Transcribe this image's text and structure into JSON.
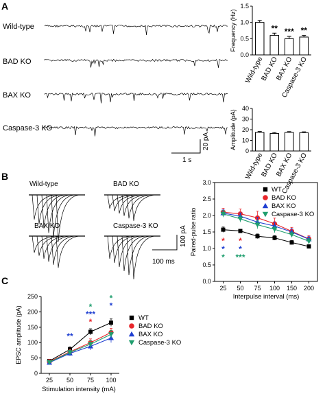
{
  "panel_letters": {
    "a": "A",
    "b": "B",
    "c": "C"
  },
  "panelA": {
    "trace_labels": [
      "Wild-type",
      "BAD KO",
      "BAX KO",
      "Caspase-3 KO"
    ],
    "scale_pa": "20 pA",
    "scale_time": "1 s"
  },
  "panelB": {
    "trace_labels": [
      "Wild-type",
      "BAD KO",
      "BAX KO",
      "Caspase-3 KO"
    ],
    "scale_pa": "100 pA",
    "scale_time": "100 ms"
  },
  "colors": {
    "wt": "#000000",
    "bad": "#e8262b",
    "bax": "#1f3fd1",
    "casp": "#1f9e6e",
    "bar": "#ffffff"
  },
  "chart_data": [
    {
      "id": "freq",
      "type": "bar",
      "categories": [
        "Wild-type",
        "BAD KO",
        "BAX KO",
        "Caspase-3 KO"
      ],
      "values": [
        1.0,
        0.6,
        0.5,
        0.55
      ],
      "errors": [
        0.06,
        0.07,
        0.07,
        0.05
      ],
      "significance": [
        "",
        "**",
        "***",
        "**"
      ],
      "ylabel": "Frequency (Hz)",
      "ylim": [
        0,
        1.5
      ],
      "yticks": [
        "0.0",
        "0.5",
        "1.0",
        "1.5"
      ]
    },
    {
      "id": "amp",
      "type": "bar",
      "categories": [
        "Wild-type",
        "BAD KO",
        "BAX KO",
        "Caspase-3 KO"
      ],
      "values": [
        17.5,
        16.5,
        17.5,
        17.2
      ],
      "errors": [
        0.8,
        0.8,
        0.7,
        0.8
      ],
      "ylabel": "Amplitude (pA)",
      "ylim": [
        0,
        40
      ],
      "yticks": [
        "0",
        "10",
        "20",
        "30",
        "40"
      ]
    },
    {
      "id": "ppr",
      "type": "line",
      "x": [
        25,
        50,
        75,
        100,
        150,
        200
      ],
      "series": [
        {
          "name": "WT",
          "key": "wt",
          "marker": "square",
          "values": [
            1.57,
            1.53,
            1.37,
            1.32,
            1.18,
            1.06
          ],
          "errors": [
            0.08,
            0.05,
            0.07,
            0.07,
            0.06,
            0.05
          ]
        },
        {
          "name": "BAD KO",
          "key": "bad",
          "marker": "circle",
          "values": [
            2.1,
            2.05,
            1.93,
            1.75,
            1.52,
            1.29
          ],
          "errors": [
            0.12,
            0.15,
            0.2,
            0.17,
            0.12,
            0.1
          ]
        },
        {
          "name": "BAX KO",
          "key": "bax",
          "marker": "triangle-up",
          "values": [
            2.07,
            1.98,
            1.8,
            1.68,
            1.5,
            1.28
          ],
          "errors": [
            0.1,
            0.1,
            0.15,
            0.12,
            0.1,
            0.08
          ]
        },
        {
          "name": "Caspase-3 KO",
          "key": "casp",
          "marker": "triangle-down",
          "values": [
            2.05,
            1.9,
            1.72,
            1.58,
            1.42,
            1.22
          ],
          "errors": [
            0.1,
            0.1,
            0.12,
            0.1,
            0.08,
            0.08
          ]
        }
      ],
      "significance": [
        {
          "x": 25,
          "rows": [
            {
              "key": "bad",
              "text": "*"
            },
            {
              "key": "bax",
              "text": "*"
            },
            {
              "key": "casp",
              "text": "*"
            }
          ]
        },
        {
          "x": 50,
          "rows": [
            {
              "key": "bad",
              "text": "*"
            },
            {
              "key": "bax",
              "text": "*"
            },
            {
              "key": "casp",
              "text": "***"
            }
          ]
        }
      ],
      "xlabel": "Interpulse interval (ms)",
      "ylabel": "Paired-pulse ratio",
      "xticks": [
        "25",
        "50",
        "75",
        "100",
        "150",
        "200"
      ],
      "ylim": [
        0,
        3.0
      ],
      "yticks": [
        "0.0",
        "0.5",
        "1.0",
        "1.5",
        "2.0",
        "2.5",
        "3.0"
      ],
      "legend": "top-right"
    },
    {
      "id": "epsc",
      "type": "line",
      "x": [
        25,
        50,
        75,
        100
      ],
      "series": [
        {
          "name": "WT",
          "key": "wt",
          "marker": "square",
          "values": [
            40,
            78,
            135,
            165
          ],
          "errors": [
            5,
            8,
            10,
            12
          ]
        },
        {
          "name": "BAD KO",
          "key": "bad",
          "marker": "circle",
          "values": [
            38,
            70,
            100,
            133
          ],
          "errors": [
            5,
            8,
            12,
            13
          ]
        },
        {
          "name": "BAX KO",
          "key": "bax",
          "marker": "triangle-up",
          "values": [
            35,
            65,
            88,
            115
          ],
          "errors": [
            5,
            8,
            12,
            15
          ]
        },
        {
          "name": "Caspase-3 KO",
          "key": "casp",
          "marker": "triangle-down",
          "values": [
            36,
            68,
            95,
            127
          ],
          "errors": [
            5,
            8,
            11,
            13
          ]
        }
      ],
      "significance": [
        {
          "x": 50,
          "rows": [
            {
              "key": "bax",
              "text": "**"
            }
          ]
        },
        {
          "x": 75,
          "rows": [
            {
              "key": "casp",
              "text": "*"
            },
            {
              "key": "bax",
              "text": "***"
            },
            {
              "key": "bad",
              "text": "*"
            }
          ]
        },
        {
          "x": 100,
          "rows": [
            {
              "key": "casp",
              "text": "*"
            },
            {
              "key": "bax",
              "text": "*"
            }
          ]
        }
      ],
      "xlabel": "Stimulation intensity (mA)",
      "ylabel": "EPSC amplitude (pA)",
      "xticks": [
        "25",
        "50",
        "75",
        "100"
      ],
      "ylim": [
        0,
        250
      ],
      "yticks": [
        "0",
        "50",
        "100",
        "150",
        "200",
        "250"
      ],
      "legend": "right"
    }
  ]
}
